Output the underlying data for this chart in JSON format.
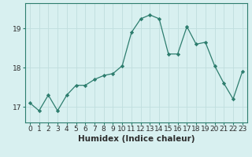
{
  "title": "",
  "xlabel": "Humidex (Indice chaleur)",
  "ylabel": "",
  "x": [
    0,
    1,
    2,
    3,
    4,
    5,
    6,
    7,
    8,
    9,
    10,
    11,
    12,
    13,
    14,
    15,
    16,
    17,
    18,
    19,
    20,
    21,
    22,
    23
  ],
  "y": [
    17.1,
    16.9,
    17.3,
    16.9,
    17.3,
    17.55,
    17.55,
    17.7,
    17.8,
    17.85,
    18.05,
    18.9,
    19.25,
    19.35,
    19.25,
    18.35,
    18.35,
    19.05,
    18.6,
    18.65,
    18.05,
    17.6,
    17.2,
    17.9
  ],
  "line_color": "#2d7d6e",
  "marker_color": "#2d7d6e",
  "bg_color": "#d8f0f0",
  "grid_color": "#c0dede",
  "yticks": [
    17,
    18,
    19
  ],
  "ylim": [
    16.6,
    19.65
  ],
  "xlim": [
    -0.5,
    23.5
  ],
  "label_fontsize": 7.5,
  "tick_fontsize": 6.5
}
